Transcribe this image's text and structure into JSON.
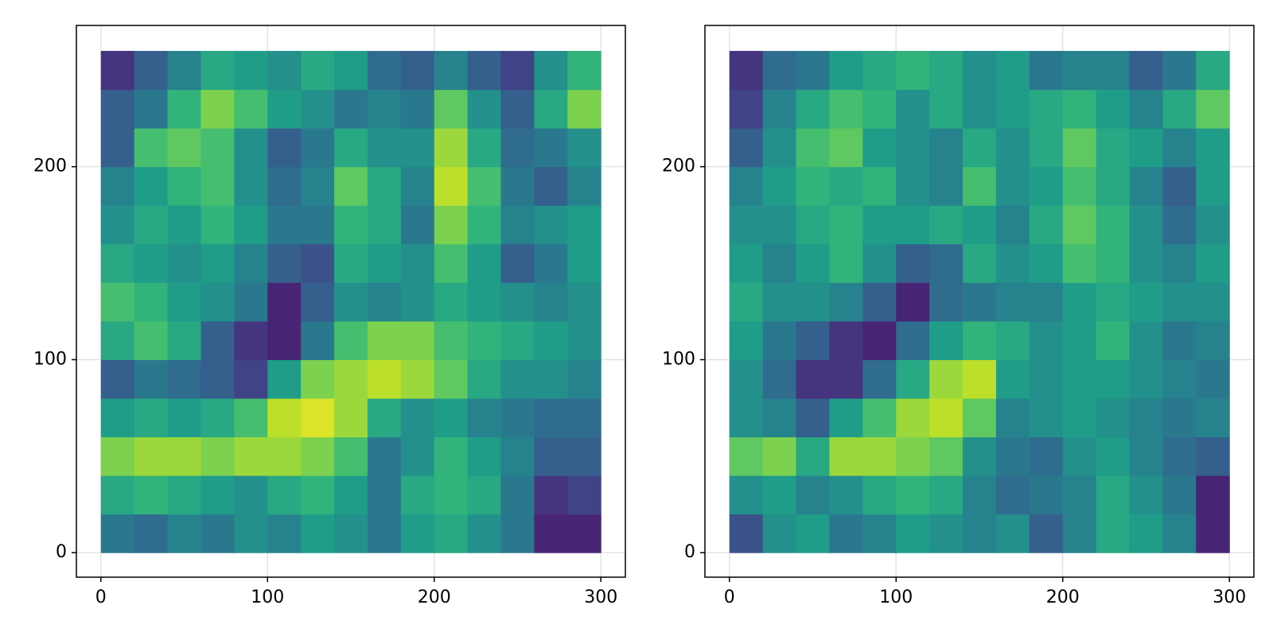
{
  "chart_data": [
    {
      "type": "heatmap",
      "colormap": "viridis",
      "grid": true,
      "xlim": [
        -14.7,
        314.7
      ],
      "ylim": [
        -12.7,
        273.2
      ],
      "xticks": [
        0,
        100,
        200,
        300
      ],
      "yticks": [
        0,
        100,
        200
      ],
      "zlim": [
        0,
        1
      ],
      "xbins": [
        0,
        20,
        40,
        60,
        80,
        100,
        120,
        140,
        160,
        180,
        200,
        220,
        240,
        260,
        280,
        300
      ],
      "ybins": [
        0,
        20,
        40,
        60,
        80,
        100,
        120,
        140,
        160,
        180,
        200,
        220,
        240,
        260
      ],
      "z": [
        [
          0.4,
          0.35,
          0.45,
          0.4,
          0.5,
          0.45,
          0.55,
          0.5,
          0.4,
          0.55,
          0.6,
          0.5,
          0.4,
          0.1,
          0.1
        ],
        [
          0.6,
          0.65,
          0.6,
          0.55,
          0.5,
          0.6,
          0.65,
          0.55,
          0.4,
          0.6,
          0.65,
          0.6,
          0.4,
          0.15,
          0.2
        ],
        [
          0.8,
          0.85,
          0.85,
          0.8,
          0.85,
          0.85,
          0.8,
          0.7,
          0.4,
          0.5,
          0.65,
          0.55,
          0.45,
          0.3,
          0.3
        ],
        [
          0.55,
          0.6,
          0.55,
          0.6,
          0.7,
          0.9,
          0.95,
          0.85,
          0.6,
          0.5,
          0.55,
          0.45,
          0.4,
          0.35,
          0.35
        ],
        [
          0.3,
          0.4,
          0.35,
          0.3,
          0.2,
          0.55,
          0.8,
          0.85,
          0.9,
          0.85,
          0.75,
          0.6,
          0.5,
          0.5,
          0.45
        ],
        [
          0.6,
          0.7,
          0.6,
          0.3,
          0.15,
          0.1,
          0.4,
          0.7,
          0.8,
          0.8,
          0.7,
          0.65,
          0.6,
          0.55,
          0.5
        ],
        [
          0.7,
          0.65,
          0.55,
          0.5,
          0.4,
          0.1,
          0.3,
          0.5,
          0.45,
          0.5,
          0.6,
          0.55,
          0.5,
          0.45,
          0.5
        ],
        [
          0.6,
          0.55,
          0.5,
          0.55,
          0.45,
          0.3,
          0.25,
          0.6,
          0.55,
          0.5,
          0.7,
          0.55,
          0.3,
          0.4,
          0.55
        ],
        [
          0.5,
          0.6,
          0.55,
          0.65,
          0.55,
          0.4,
          0.4,
          0.65,
          0.6,
          0.4,
          0.8,
          0.65,
          0.45,
          0.5,
          0.55
        ],
        [
          0.45,
          0.55,
          0.65,
          0.7,
          0.5,
          0.35,
          0.45,
          0.75,
          0.6,
          0.45,
          0.9,
          0.7,
          0.4,
          0.3,
          0.45
        ],
        [
          0.3,
          0.7,
          0.75,
          0.7,
          0.5,
          0.3,
          0.4,
          0.6,
          0.5,
          0.5,
          0.85,
          0.6,
          0.35,
          0.4,
          0.5
        ],
        [
          0.3,
          0.4,
          0.65,
          0.8,
          0.7,
          0.55,
          0.5,
          0.4,
          0.45,
          0.4,
          0.75,
          0.5,
          0.3,
          0.6,
          0.8
        ],
        [
          0.15,
          0.3,
          0.45,
          0.6,
          0.55,
          0.5,
          0.6,
          0.55,
          0.35,
          0.3,
          0.45,
          0.3,
          0.2,
          0.5,
          0.65
        ]
      ]
    },
    {
      "type": "heatmap",
      "colormap": "viridis",
      "grid": true,
      "xlim": [
        -14.7,
        314.7
      ],
      "ylim": [
        -12.7,
        273.2
      ],
      "xticks": [
        0,
        100,
        200,
        300
      ],
      "yticks": [
        0,
        100,
        200
      ],
      "zlim": [
        0,
        1
      ],
      "xbins": [
        0,
        20,
        40,
        60,
        80,
        100,
        120,
        140,
        160,
        180,
        200,
        220,
        240,
        260,
        280,
        300
      ],
      "ybins": [
        0,
        20,
        40,
        60,
        80,
        100,
        120,
        140,
        160,
        180,
        200,
        220,
        240,
        260
      ],
      "z": [
        [
          0.25,
          0.5,
          0.55,
          0.4,
          0.45,
          0.55,
          0.5,
          0.45,
          0.5,
          0.3,
          0.45,
          0.6,
          0.55,
          0.45,
          0.1
        ],
        [
          0.5,
          0.55,
          0.45,
          0.5,
          0.6,
          0.65,
          0.6,
          0.45,
          0.35,
          0.4,
          0.45,
          0.6,
          0.5,
          0.4,
          0.1
        ],
        [
          0.75,
          0.8,
          0.6,
          0.85,
          0.85,
          0.8,
          0.75,
          0.5,
          0.4,
          0.35,
          0.5,
          0.55,
          0.45,
          0.35,
          0.3
        ],
        [
          0.5,
          0.45,
          0.3,
          0.55,
          0.7,
          0.85,
          0.9,
          0.75,
          0.45,
          0.5,
          0.55,
          0.5,
          0.45,
          0.4,
          0.45
        ],
        [
          0.5,
          0.35,
          0.15,
          0.15,
          0.35,
          0.6,
          0.85,
          0.9,
          0.55,
          0.5,
          0.55,
          0.55,
          0.5,
          0.45,
          0.4
        ],
        [
          0.55,
          0.4,
          0.3,
          0.15,
          0.1,
          0.35,
          0.55,
          0.65,
          0.6,
          0.5,
          0.55,
          0.65,
          0.5,
          0.4,
          0.45
        ],
        [
          0.6,
          0.5,
          0.5,
          0.45,
          0.3,
          0.1,
          0.35,
          0.4,
          0.45,
          0.45,
          0.55,
          0.6,
          0.55,
          0.5,
          0.5
        ],
        [
          0.55,
          0.45,
          0.55,
          0.65,
          0.5,
          0.3,
          0.35,
          0.6,
          0.5,
          0.55,
          0.7,
          0.65,
          0.5,
          0.45,
          0.55
        ],
        [
          0.5,
          0.5,
          0.6,
          0.65,
          0.55,
          0.55,
          0.6,
          0.55,
          0.45,
          0.6,
          0.75,
          0.65,
          0.5,
          0.35,
          0.5
        ],
        [
          0.45,
          0.55,
          0.65,
          0.6,
          0.65,
          0.5,
          0.45,
          0.7,
          0.5,
          0.55,
          0.7,
          0.6,
          0.45,
          0.3,
          0.55
        ],
        [
          0.3,
          0.5,
          0.7,
          0.75,
          0.55,
          0.5,
          0.45,
          0.6,
          0.5,
          0.6,
          0.75,
          0.6,
          0.55,
          0.45,
          0.55
        ],
        [
          0.2,
          0.45,
          0.6,
          0.7,
          0.65,
          0.5,
          0.6,
          0.5,
          0.55,
          0.6,
          0.65,
          0.55,
          0.45,
          0.6,
          0.75
        ],
        [
          0.15,
          0.35,
          0.4,
          0.55,
          0.6,
          0.65,
          0.6,
          0.5,
          0.55,
          0.4,
          0.45,
          0.45,
          0.3,
          0.4,
          0.6
        ]
      ]
    }
  ]
}
